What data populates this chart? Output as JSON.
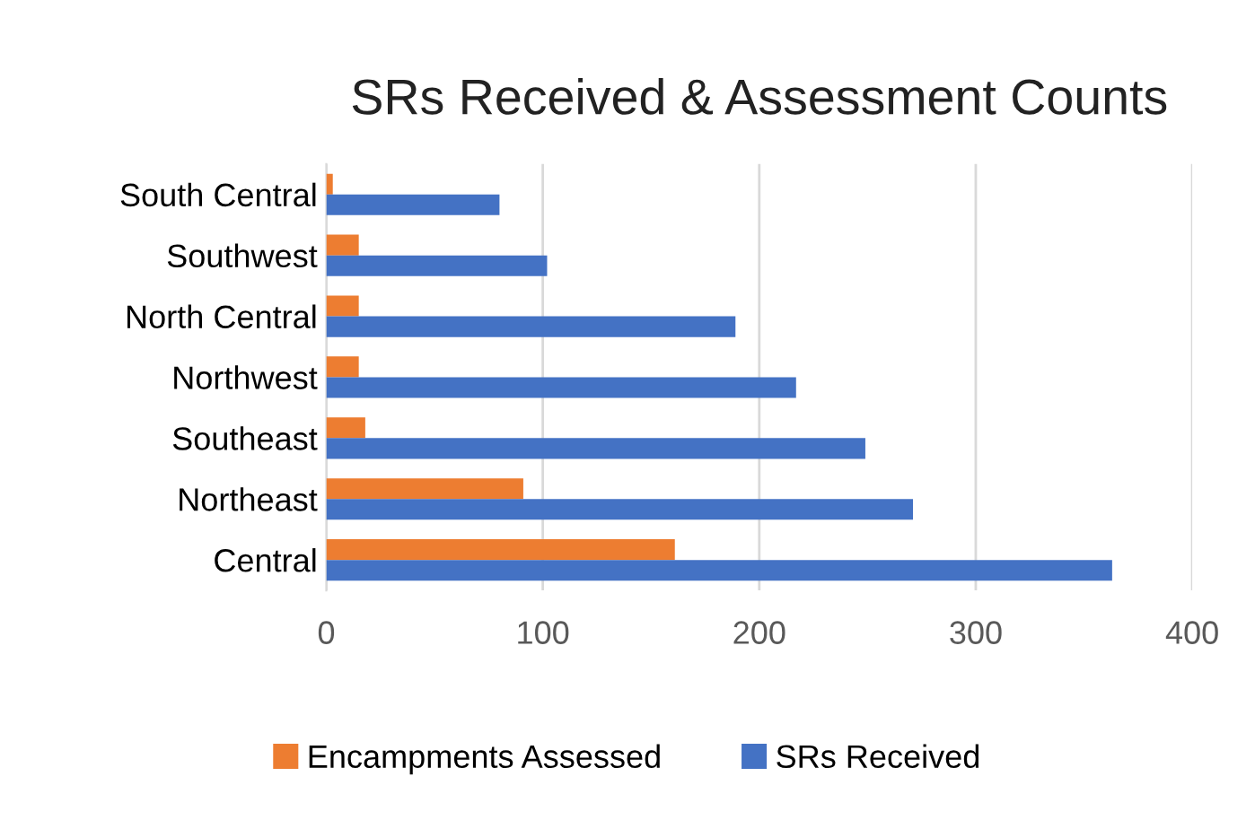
{
  "chart_data": {
    "type": "bar",
    "orientation": "horizontal",
    "title": "SRs Received & Assessment Counts",
    "categories": [
      "South Central",
      "Southwest",
      "North Central",
      "Northwest",
      "Southeast",
      "Northeast",
      "Central"
    ],
    "series": [
      {
        "name": "Encampments Assessed",
        "color": "#ed7d31",
        "values": [
          3,
          15,
          15,
          15,
          18,
          91,
          161
        ]
      },
      {
        "name": "SRs Received",
        "color": "#4472c4",
        "values": [
          80,
          102,
          189,
          217,
          249,
          271,
          363
        ]
      }
    ],
    "xlim": [
      0,
      400
    ],
    "xticks": [
      0,
      100,
      200,
      300,
      400
    ],
    "grid": "x",
    "legend": "bottom"
  }
}
